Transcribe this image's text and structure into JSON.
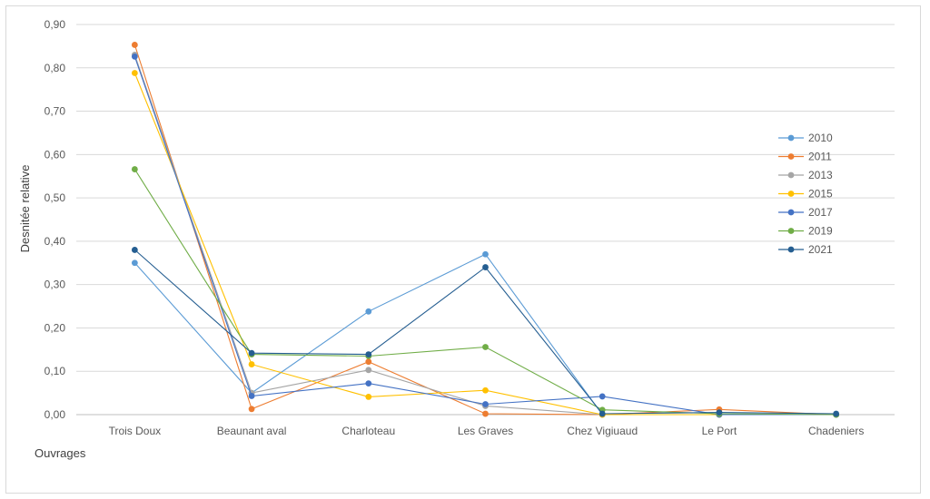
{
  "chart_data": {
    "type": "line",
    "title": "",
    "xlabel": "Ouvrages",
    "ylabel": "Desnitée relative",
    "categories": [
      "Trois Doux",
      "Beaunant aval",
      "Charloteau",
      "Les Graves",
      "Chez Vigiuaud",
      "Le Port",
      "Chadeniers"
    ],
    "ylim": [
      0,
      0.9
    ],
    "yticks": [
      "0,00",
      "0,10",
      "0,20",
      "0,30",
      "0,40",
      "0,50",
      "0,60",
      "0,70",
      "0,80",
      "0,90"
    ],
    "grid": true,
    "legend_position": "right",
    "series": [
      {
        "name": "2010",
        "color": "#5b9bd5",
        "values": [
          0.35,
          0.05,
          0.238,
          0.37,
          0.0,
          0.0,
          0.0
        ]
      },
      {
        "name": "2011",
        "color": "#ed7d31",
        "values": [
          0.853,
          0.013,
          0.122,
          0.002,
          0.0,
          0.012,
          0.0
        ]
      },
      {
        "name": "2013",
        "color": "#a5a5a5",
        "values": [
          0.83,
          0.05,
          0.103,
          0.02,
          0.0,
          0.0,
          0.0
        ]
      },
      {
        "name": "2015",
        "color": "#ffc000",
        "values": [
          0.788,
          0.116,
          0.041,
          0.056,
          0.0,
          0.0,
          0.0
        ]
      },
      {
        "name": "2017",
        "color": "#4472c4",
        "values": [
          0.826,
          0.043,
          0.072,
          0.024,
          0.042,
          0.0,
          0.0
        ]
      },
      {
        "name": "2019",
        "color": "#70ad47",
        "values": [
          0.566,
          0.139,
          0.135,
          0.156,
          0.011,
          0.002,
          0.0
        ]
      },
      {
        "name": "2021",
        "color": "#255e91",
        "values": [
          0.38,
          0.142,
          0.139,
          0.34,
          0.002,
          0.005,
          0.002
        ]
      }
    ]
  }
}
